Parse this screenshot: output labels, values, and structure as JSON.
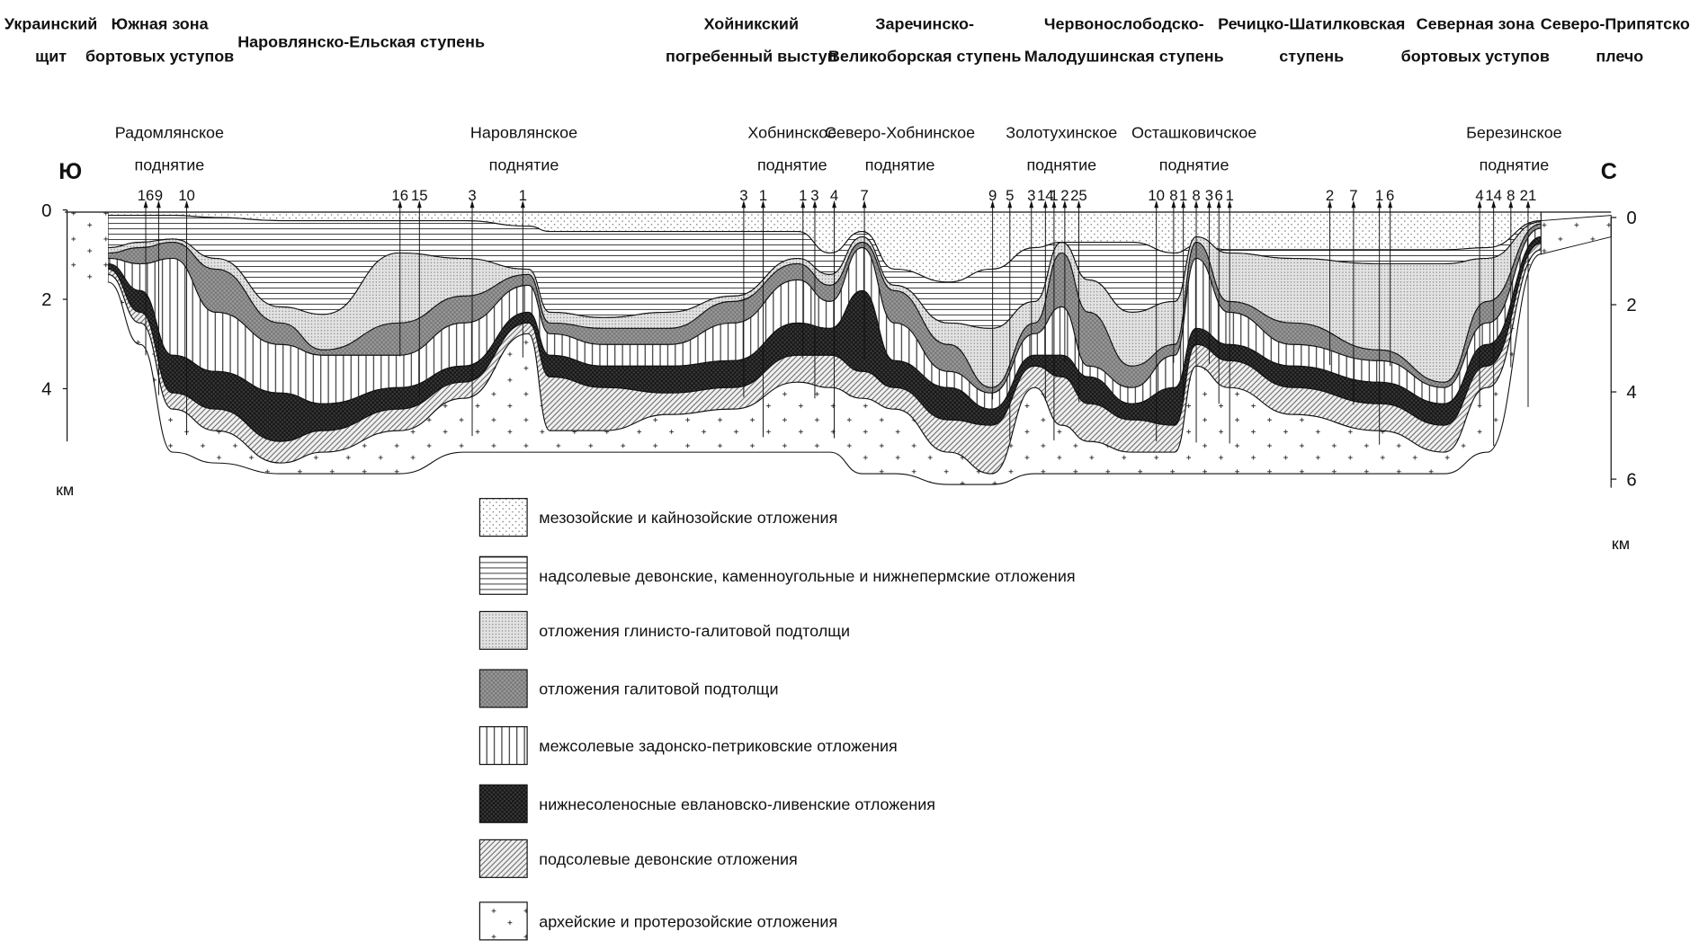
{
  "zones": [
    [
      "Украинский",
      "щит"
    ],
    [
      "Южная зона",
      "бортовых уступов"
    ],
    [
      "Наровлянско-Ельская ступень"
    ],
    [
      "Хойникский",
      "погребенный выступ"
    ],
    [
      "Заречинско-",
      "Великоборская ступень"
    ],
    [
      "Червонослободско-",
      "Малодушинская ступень"
    ],
    [
      "Речицко-Шатилковская",
      "ступень"
    ],
    [
      "Северная зона",
      "бортовых уступов"
    ],
    [
      "Северо-Припятское",
      "плечо"
    ]
  ],
  "uplifts": [
    [
      "Радомлянское",
      "поднятие"
    ],
    [
      "Наровлянское",
      "поднятие"
    ],
    [
      "Хобнинское",
      "поднятие"
    ],
    [
      "Северо-Хобнинское",
      "поднятие"
    ],
    [
      "Золотухинское",
      "поднятие"
    ],
    [
      "Осташковичское",
      "поднятие"
    ],
    [
      "Березинское",
      "поднятие"
    ]
  ],
  "directions": {
    "left": "Ю",
    "right": "С"
  },
  "wells": [
    "16",
    "9",
    "10",
    "16",
    "15",
    "3",
    "1",
    "3",
    "1",
    "1",
    "3",
    "4",
    "7",
    "9",
    "5",
    "3",
    "14",
    "1",
    "2",
    "25",
    "10",
    "8",
    "1",
    "8",
    "3",
    "6",
    "1",
    "2",
    "7",
    "1",
    "6",
    "4",
    "14",
    "8",
    "21"
  ],
  "left_axis": {
    "ticks": [
      0,
      2,
      4
    ],
    "unit": "км"
  },
  "right_axis": {
    "ticks": [
      0,
      2,
      4,
      6
    ],
    "unit": "км"
  },
  "legend": [
    "мезозойские и кайнозойские отложения",
    "надсолевые девонские, каменноугольные и нижнепермские отложения",
    "отложения глинисто-галитовой подтолщи",
    "отложения галитовой подтолщи",
    "межсолевые задонско-петриковские отложения",
    "нижнесоленосные евлановско-ливенские отложения",
    "подсолевые девонские отложения",
    "архейские и протерозойские отложения"
  ]
}
